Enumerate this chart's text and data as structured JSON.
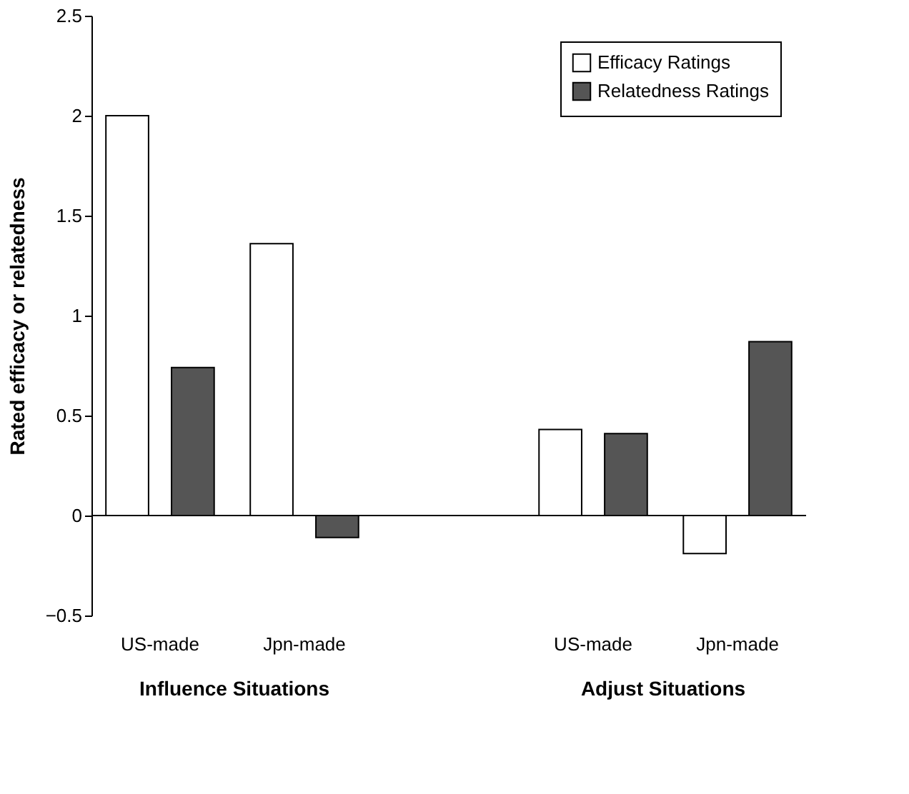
{
  "chart_data": {
    "type": "bar",
    "ylabel": "Rated efficacy or relatedness",
    "categories": [
      "US-made",
      "Jpn-made",
      null,
      "US-made",
      "Jpn-made"
    ],
    "series": [
      {
        "name": "Efficacy Ratings",
        "color": "#ffffff",
        "values": [
          2.0,
          1.36,
          null,
          0.43,
          -0.19
        ]
      },
      {
        "name": "Relatedness Ratings",
        "color": "#555555",
        "values": [
          0.74,
          -0.11,
          null,
          0.41,
          0.87
        ]
      }
    ],
    "ylim": [
      -0.5,
      2.5
    ],
    "yticks": [
      -0.5,
      0,
      0.5,
      1,
      1.5,
      2,
      2.5
    ],
    "annotations": [
      "Influence Situations",
      "Adjust Situations"
    ],
    "ref_lines": [
      {
        "axis": "y",
        "value": 0,
        "color": "#000000"
      }
    ],
    "legend": "top right",
    "grid": false
  }
}
